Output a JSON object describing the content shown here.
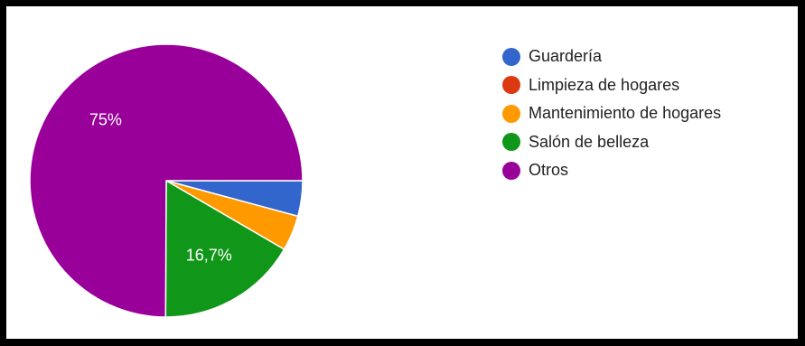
{
  "chart_data": {
    "type": "pie",
    "title": "",
    "categories": [
      "Guardería",
      "Limpieza de hogares",
      "Mantenimiento de hogares",
      "Salón de belleza",
      "Otros"
    ],
    "values": [
      4.2,
      0,
      4.2,
      16.7,
      75
    ],
    "colors": [
      "#3366cc",
      "#dc3912",
      "#ff9900",
      "#109618",
      "#990099"
    ],
    "data_labels": [
      "",
      "",
      "",
      "16,7%",
      "75%"
    ],
    "legend_position": "right",
    "start_angle": "3 o'clock, clockwise"
  }
}
